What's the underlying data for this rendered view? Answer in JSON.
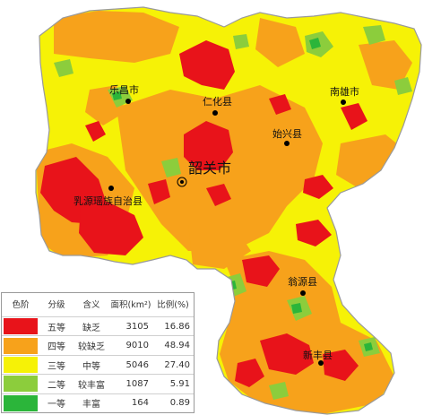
{
  "map": {
    "capital": {
      "name": "韶关市"
    },
    "places": [
      {
        "id": "lechang",
        "name": "乐昌市"
      },
      {
        "id": "renhua",
        "name": "仁化县"
      },
      {
        "id": "nanxiong",
        "name": "南雄市"
      },
      {
        "id": "shixing",
        "name": "始兴县"
      },
      {
        "id": "ruyuan",
        "name": "乳源瑶族自治县"
      },
      {
        "id": "wengyuan",
        "name": "翁源县"
      },
      {
        "id": "xinfeng",
        "name": "新丰县"
      }
    ],
    "colors": {
      "grade5": "#e8131a",
      "grade4": "#f7a21b",
      "grade3": "#f6f206",
      "grade2": "#8ccd3c",
      "grade1": "#2bb53a",
      "outline": "#9a9a9a"
    }
  },
  "legend": {
    "headers": {
      "swatch": "色阶",
      "grade": "分级",
      "meaning": "含义",
      "area": "面积(km²)",
      "ratio": "比例(%)"
    },
    "rows": [
      {
        "grade": "五等",
        "meaning": "缺乏",
        "area": "3105",
        "ratio": "16.86",
        "color": "#e8131a"
      },
      {
        "grade": "四等",
        "meaning": "较缺乏",
        "area": "9010",
        "ratio": "48.94",
        "color": "#f7a21b"
      },
      {
        "grade": "三等",
        "meaning": "中等",
        "area": "5046",
        "ratio": "27.40",
        "color": "#f6f206"
      },
      {
        "grade": "二等",
        "meaning": "较丰富",
        "area": "1087",
        "ratio": "5.91",
        "color": "#8ccd3c"
      },
      {
        "grade": "一等",
        "meaning": "丰富",
        "area": "164",
        "ratio": "0.89",
        "color": "#2bb53a"
      }
    ]
  }
}
